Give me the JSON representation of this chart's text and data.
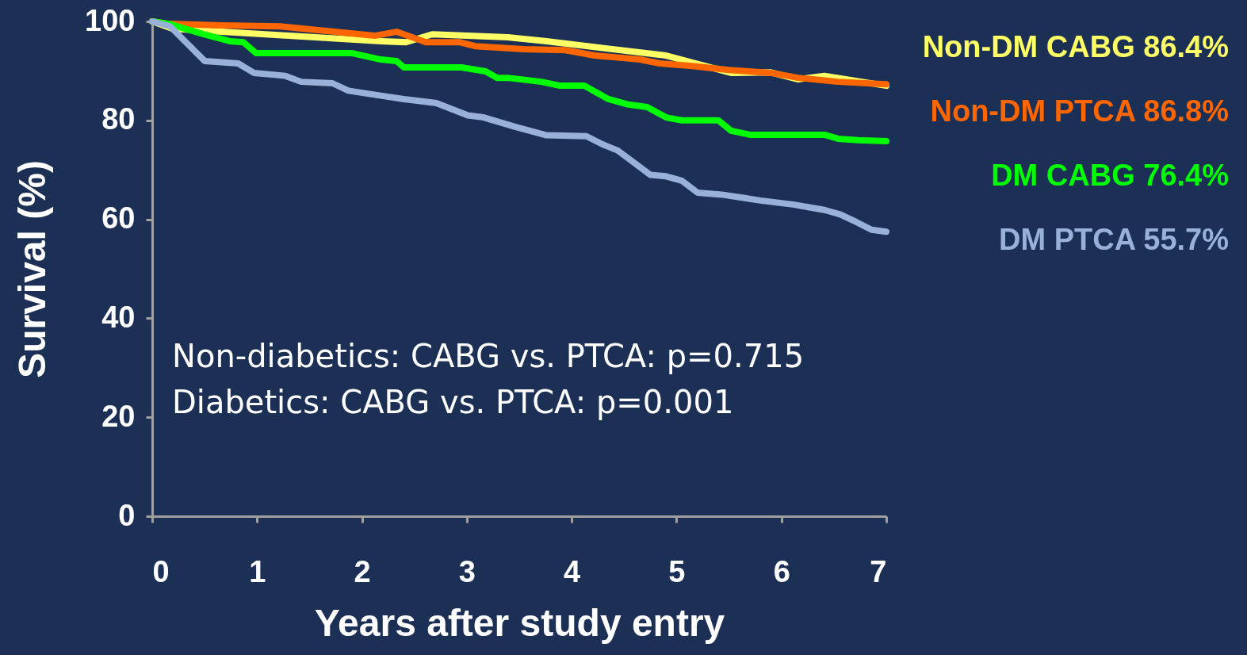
{
  "chart_data": {
    "type": "line",
    "xlabel": "Years after study entry",
    "ylabel": "Survival (%)",
    "xlim": [
      0,
      7
    ],
    "ylim": [
      0,
      100
    ],
    "xticks": [
      0,
      1,
      2,
      3,
      4,
      5,
      6,
      7
    ],
    "yticks": [
      0,
      20,
      40,
      60,
      80,
      100
    ],
    "legend": "right",
    "line_style": "solid",
    "annotations": [
      "Non-diabetics: CABG vs. PTCA: p=0.715",
      "Diabetics:        CABG vs. PTCA: p=0.001"
    ],
    "series": [
      {
        "name": "Non-DM CABG 86.4%",
        "color": "#ffff66",
        "x": [
          0,
          0.2,
          0.6,
          1.3,
          2.18,
          2.42,
          2.67,
          3.39,
          3.76,
          4.9,
          5.52,
          5.9,
          6.16,
          6.41,
          7
        ],
        "values": [
          100,
          98.5,
          98,
          97.1,
          96,
          95.8,
          97.4,
          96.8,
          96,
          93.1,
          89.6,
          89.7,
          88.3,
          89,
          87
        ]
      },
      {
        "name": "Non-DM PTCA 86.8%",
        "color": "#ff6600",
        "x": [
          0,
          0.16,
          0.67,
          1.22,
          2.12,
          2.33,
          2.61,
          2.93,
          3.08,
          3.54,
          3.94,
          4.22,
          4.65,
          4.84,
          5.15,
          5.5,
          5.9,
          6.16,
          6.54,
          7
        ],
        "values": [
          100,
          99.5,
          99.2,
          99,
          97.1,
          97.9,
          95.8,
          95.8,
          95,
          94.4,
          94.2,
          93.1,
          92.3,
          91.5,
          91,
          90.2,
          89.6,
          88.6,
          87.8,
          87.3
        ]
      },
      {
        "name": "DM CABG 76.4%",
        "color": "#00ff00",
        "x": [
          0,
          0.16,
          0.49,
          0.74,
          0.87,
          0.99,
          1.9,
          2.18,
          2.33,
          2.4,
          2.95,
          3.18,
          3.29,
          3.39,
          3.71,
          3.89,
          4.12,
          4.35,
          4.54,
          4.72,
          4.9,
          5.05,
          5.4,
          5.52,
          5.7,
          6.41,
          6.54,
          6.73,
          7
        ],
        "values": [
          100,
          99.5,
          97.4,
          96,
          95.8,
          93.6,
          93.6,
          92.3,
          92,
          90.7,
          90.7,
          89.9,
          88.6,
          88.6,
          87.8,
          87,
          87,
          84.3,
          83.2,
          82.7,
          80.6,
          80,
          80,
          77.9,
          77.1,
          77.1,
          76.3,
          76,
          75.8
        ]
      },
      {
        "name": "DM PTCA 55.7%",
        "color": "#99b0d8",
        "x": [
          0,
          0.17,
          0.5,
          0.82,
          0.97,
          1.27,
          1.42,
          1.72,
          1.87,
          2.18,
          2.4,
          2.71,
          3.01,
          3.16,
          3.46,
          3.76,
          4.14,
          4.29,
          4.44,
          4.75,
          4.9,
          5.05,
          5.2,
          5.43,
          5.65,
          5.8,
          6.11,
          6.41,
          6.56,
          6.71,
          6.86,
          7
        ],
        "values": [
          100,
          99,
          92,
          91.5,
          89.6,
          89,
          87.8,
          87.5,
          86,
          85,
          84.3,
          83.5,
          81,
          80.6,
          78.7,
          77,
          76.8,
          75.2,
          73.9,
          69,
          68.7,
          67.8,
          65.4,
          65,
          64.3,
          63.8,
          63,
          61.9,
          61,
          59.5,
          57.9,
          57.5
        ]
      }
    ]
  }
}
